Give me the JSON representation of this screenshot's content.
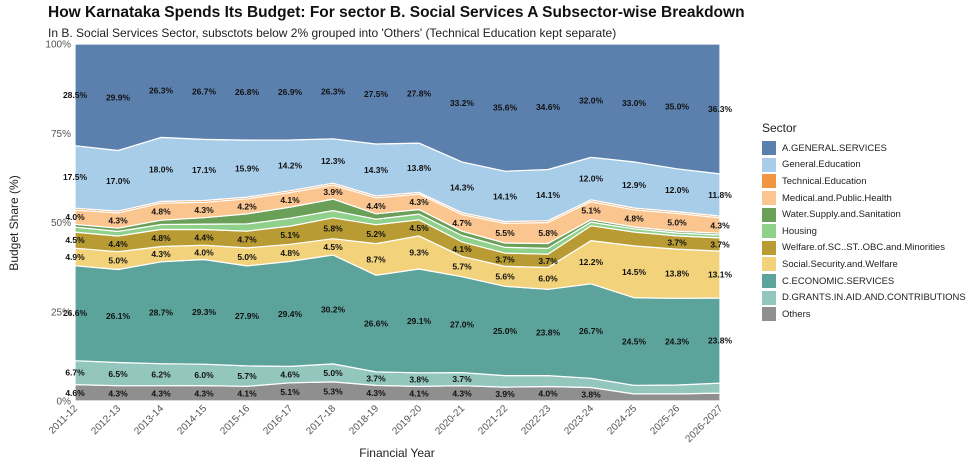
{
  "chart_data": {
    "type": "area",
    "stacked": true,
    "normalized": true,
    "title": "How Karnataka Spends Its Budget: For sector B. Social Services  A Subsector-wise Breakdown",
    "subtitle": "In B. Social Services Sector, subsctots below 2% grouped into 'Others' (Technical Education kept separate)",
    "xlabel": "Financial Year",
    "ylabel": "Budget Share (%)",
    "ylim": [
      0,
      100
    ],
    "y_ticks": [
      "0%",
      "25%",
      "50%",
      "75%",
      "100%"
    ],
    "grid": true,
    "legend_title": "Sector",
    "legend_position": "right",
    "categories": [
      "2011-12",
      "2012-13",
      "2013-14",
      "2014-15",
      "2015-16",
      "2016-17",
      "2017-18",
      "2018-19",
      "2019-20",
      "2020-21",
      "2021-22",
      "2022-23",
      "2023-24",
      "2024-25",
      "2025-26",
      "2026-2027"
    ],
    "series": [
      {
        "name": "Others",
        "color": "#8f8f8f",
        "values": [
          4.6,
          4.3,
          4.3,
          4.3,
          4.1,
          5.1,
          5.3,
          4.3,
          4.1,
          4.3,
          3.9,
          4.0,
          3.8,
          2.0,
          2.0,
          2.2
        ],
        "labels": [
          "4.6%",
          "4.3%",
          "4.3%",
          "4.3%",
          "4.1%",
          "5.1%",
          "5.3%",
          "4.3%",
          "4.1%",
          "4.3%",
          "3.9%",
          "4.0%",
          "3.8%",
          "",
          "",
          ""
        ]
      },
      {
        "name": "D.GRANTS.IN.AID.AND.CONTRIBUTIONS",
        "color": "#93c6bd",
        "values": [
          6.7,
          6.5,
          6.2,
          6.0,
          5.7,
          4.6,
          5.0,
          3.7,
          3.8,
          3.7,
          3.2,
          3.0,
          2.6,
          2.4,
          2.5,
          2.8
        ],
        "labels": [
          "6.7%",
          "6.5%",
          "6.2%",
          "6.0%",
          "5.7%",
          "4.6%",
          "5.0%",
          "3.7%",
          "3.8%",
          "3.7%",
          "",
          "",
          "",
          "",
          "",
          ""
        ]
      },
      {
        "name": "C.ECONOMIC.SERVICES",
        "color": "#5ba39b",
        "values": [
          26.6,
          26.1,
          28.7,
          29.3,
          27.9,
          29.4,
          30.2,
          26.6,
          29.1,
          27.0,
          25.0,
          23.8,
          26.7,
          24.5,
          24.3,
          23.8
        ],
        "labels": [
          "26.6%",
          "26.1%",
          "28.7%",
          "29.3%",
          "27.9%",
          "29.4%",
          "30.2%",
          "26.6%",
          "29.1%",
          "27.0%",
          "25.0%",
          "23.8%",
          "26.7%",
          "24.5%",
          "24.3%",
          "23.8%"
        ]
      },
      {
        "name": "Social.Security.and.Welfare",
        "color": "#f2d27a",
        "values": [
          4.9,
          5.0,
          4.3,
          4.0,
          5.0,
          4.8,
          4.5,
          8.7,
          9.3,
          5.7,
          5.6,
          6.0,
          12.2,
          14.5,
          13.8,
          13.1
        ],
        "labels": [
          "4.9%",
          "5.0%",
          "4.3%",
          "4.0%",
          "5.0%",
          "4.8%",
          "4.5%",
          "8.7%",
          "9.3%",
          "5.7%",
          "5.6%",
          "6.0%",
          "12.2%",
          "14.5%",
          "13.8%",
          "13.1%"
        ]
      },
      {
        "name": "Welfare.of.SC..ST..OBC.and.Minorities",
        "color": "#b89b33",
        "values": [
          4.5,
          4.4,
          4.8,
          4.4,
          4.7,
          5.1,
          5.8,
          5.2,
          4.5,
          4.1,
          3.7,
          3.7,
          4.2,
          3.9,
          3.7,
          3.7
        ],
        "labels": [
          "4.5%",
          "4.4%",
          "4.8%",
          "4.4%",
          "4.7%",
          "5.1%",
          "5.8%",
          "5.2%",
          "4.5%",
          "4.1%",
          "3.7%",
          "3.7%",
          "",
          "",
          "3.7%",
          "3.7%"
        ]
      },
      {
        "name": "Housing",
        "color": "#8fd08a",
        "values": [
          1.4,
          1.3,
          1.4,
          1.5,
          2.0,
          2.2,
          2.0,
          1.5,
          1.6,
          1.8,
          1.6,
          1.6,
          1.0,
          0.9,
          0.8,
          0.8
        ],
        "labels": [
          "",
          "",
          "",
          "",
          "",
          "",
          "",
          "",
          "",
          "",
          "",
          "",
          "",
          "",
          "",
          ""
        ]
      },
      {
        "name": "Water.Supply.and.Sanitation",
        "color": "#6a9f58",
        "values": [
          0.8,
          0.9,
          1.2,
          1.8,
          2.8,
          3.1,
          3.2,
          1.5,
          1.3,
          1.2,
          1.2,
          1.3,
          0.7,
          0.5,
          0.5,
          0.5
        ],
        "labels": [
          "",
          "",
          "",
          "",
          "",
          "",
          "",
          "",
          "",
          "",
          "",
          "",
          "",
          "",
          "",
          ""
        ]
      },
      {
        "name": "Medical.and.Public.Health",
        "color": "#fbc590",
        "values": [
          4.0,
          4.3,
          4.8,
          4.3,
          4.2,
          4.1,
          3.9,
          4.4,
          4.3,
          4.7,
          5.5,
          5.8,
          5.1,
          4.8,
          5.0,
          4.3
        ],
        "labels": [
          "4.0%",
          "4.3%",
          "4.8%",
          "4.3%",
          "4.2%",
          "4.1%",
          "3.9%",
          "4.4%",
          "4.3%",
          "4.7%",
          "5.5%",
          "5.8%",
          "5.1%",
          "4.8%",
          "5.0%",
          "4.3%"
        ]
      },
      {
        "name": "Technical.Education",
        "color": "#f29540",
        "values": [
          0.5,
          0.5,
          0.5,
          0.5,
          0.5,
          0.5,
          0.5,
          0.5,
          0.5,
          0.5,
          0.5,
          0.5,
          0.5,
          0.5,
          0.5,
          0.5
        ],
        "labels": [
          "",
          "",
          "",
          "",
          "",
          "",
          "",
          "",
          "",
          "",
          "",
          "",
          "",
          "",
          "",
          ""
        ]
      },
      {
        "name": "General.Education",
        "color": "#a8cde9",
        "values": [
          17.5,
          17.0,
          18.0,
          17.1,
          15.9,
          14.2,
          12.3,
          14.3,
          13.8,
          14.3,
          14.1,
          14.1,
          12.0,
          12.9,
          12.0,
          11.8
        ],
        "labels": [
          "17.5%",
          "17.0%",
          "18.0%",
          "17.1%",
          "15.9%",
          "14.2%",
          "12.3%",
          "14.3%",
          "13.8%",
          "14.3%",
          "14.1%",
          "14.1%",
          "12.0%",
          "12.9%",
          "12.0%",
          "11.8%"
        ]
      },
      {
        "name": "A.GENERAL.SERVICES",
        "color": "#5b80ad",
        "values": [
          28.5,
          29.9,
          26.3,
          26.7,
          26.8,
          26.9,
          26.3,
          27.5,
          27.8,
          33.2,
          35.6,
          34.6,
          32.0,
          33.0,
          35.0,
          36.3
        ],
        "labels": [
          "28.5%",
          "29.9%",
          "26.3%",
          "26.7%",
          "26.8%",
          "26.9%",
          "26.3%",
          "27.5%",
          "27.8%",
          "33.2%",
          "35.6%",
          "34.6%",
          "32.0%",
          "33.0%",
          "35.0%",
          "36.3%"
        ]
      }
    ]
  }
}
